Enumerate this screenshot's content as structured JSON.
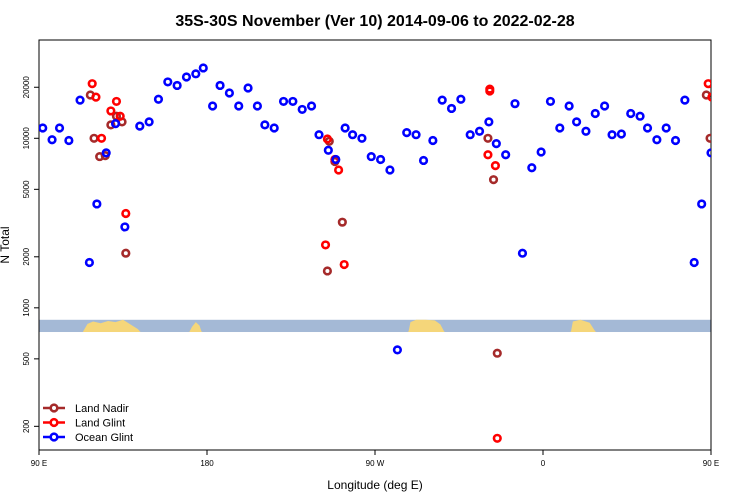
{
  "chart_data": {
    "type": "scatter",
    "title": "35S-30S November (Ver 10)   2014-09-06 to 2022-02-28",
    "xlabel": "Longitude (deg E)",
    "ylabel": "N Total",
    "y_scale": "log",
    "xlim": [
      90,
      450
    ],
    "ylim": [
      145,
      38000
    ],
    "x_ticks": [
      {
        "value": 90,
        "label": "90 E"
      },
      {
        "value": 180,
        "label": "180"
      },
      {
        "value": 270,
        "label": "90 W"
      },
      {
        "value": 360,
        "label": "0"
      },
      {
        "value": 450,
        "label": "90 E"
      },
      {
        "value": 540,
        "label": "180"
      }
    ],
    "y_ticks": [
      {
        "value": 200,
        "label": "200"
      },
      {
        "value": 500,
        "label": "500"
      },
      {
        "value": 1000,
        "label": "1000"
      },
      {
        "value": 2000,
        "label": "2000"
      },
      {
        "value": 5000,
        "label": "5000"
      },
      {
        "value": 10000,
        "label": "10000"
      },
      {
        "value": 20000,
        "label": "20000"
      }
    ],
    "legend": {
      "position": "bottom-left"
    },
    "map_strip": {
      "y_top": 850,
      "y_bottom": 720,
      "ocean_color": "#a4b9d6",
      "land_color": "#f5d67a"
    },
    "series": [
      {
        "name": "Land Nadir",
        "color": "#a52a2a",
        "points": [
          [
            117.5,
            18000
          ],
          [
            119.5,
            10000
          ],
          [
            122.5,
            7800
          ],
          [
            125.5,
            7900
          ],
          [
            128.5,
            12000
          ],
          [
            131.5,
            13500
          ],
          [
            134.5,
            12500
          ],
          [
            136.5,
            2100
          ],
          [
            244.5,
            1650
          ],
          [
            245.5,
            9600
          ],
          [
            248.5,
            7300
          ],
          [
            252.5,
            3200
          ],
          [
            330.5,
            10000
          ],
          [
            333.5,
            5700
          ],
          [
            335.5,
            540
          ],
          [
            447.5,
            18000
          ],
          [
            449.5,
            10000
          ],
          [
            452.5,
            7800
          ],
          [
            455.5,
            7900
          ],
          [
            458.5,
            12000
          ],
          [
            461.5,
            13500
          ],
          [
            464.5,
            12500
          ],
          [
            466.5,
            2100
          ]
        ]
      },
      {
        "name": "Land Glint",
        "color": "#ff0000",
        "points": [
          [
            118.5,
            21000
          ],
          [
            120.5,
            17500
          ],
          [
            123.5,
            10000
          ],
          [
            128.5,
            14500
          ],
          [
            131.5,
            16500
          ],
          [
            133.5,
            13500
          ],
          [
            136.5,
            3600
          ],
          [
            243.5,
            2350
          ],
          [
            244.5,
            9900
          ],
          [
            248.5,
            7500
          ],
          [
            250.5,
            6500
          ],
          [
            253.5,
            1800
          ],
          [
            330.5,
            8000
          ],
          [
            331.5,
            19000
          ],
          [
            331.5,
            19500
          ],
          [
            334.5,
            6900
          ],
          [
            335.5,
            170
          ],
          [
            448.5,
            21000
          ],
          [
            450.5,
            17500
          ],
          [
            453.5,
            10000
          ],
          [
            458.5,
            14500
          ],
          [
            461.5,
            16500
          ],
          [
            463.5,
            13500
          ],
          [
            466.5,
            3600
          ]
        ]
      },
      {
        "name": "Ocean Glint",
        "color": "#0000ff",
        "points": [
          [
            92,
            11500
          ],
          [
            97,
            9800
          ],
          [
            101,
            11500
          ],
          [
            106,
            9700
          ],
          [
            112,
            16800
          ],
          [
            117,
            1850
          ],
          [
            121,
            4100
          ],
          [
            126,
            8200
          ],
          [
            131,
            12200
          ],
          [
            136,
            3000
          ],
          [
            144,
            11800
          ],
          [
            149,
            12500
          ],
          [
            154,
            17000
          ],
          [
            159,
            21500
          ],
          [
            164,
            20500
          ],
          [
            169,
            23000
          ],
          [
            174,
            24000
          ],
          [
            178,
            26000
          ],
          [
            183,
            15500
          ],
          [
            187,
            20500
          ],
          [
            192,
            18500
          ],
          [
            197,
            15500
          ],
          [
            202,
            19800
          ],
          [
            207,
            15500
          ],
          [
            211,
            12000
          ],
          [
            216,
            11500
          ],
          [
            221,
            16500
          ],
          [
            226,
            16500
          ],
          [
            231,
            14800
          ],
          [
            236,
            15500
          ],
          [
            240,
            10500
          ],
          [
            245,
            8500
          ],
          [
            249,
            7500
          ],
          [
            254,
            11500
          ],
          [
            258,
            10500
          ],
          [
            263,
            10000
          ],
          [
            268,
            7800
          ],
          [
            273,
            7500
          ],
          [
            278,
            6500
          ],
          [
            282,
            565
          ],
          [
            287,
            10800
          ],
          [
            292,
            10500
          ],
          [
            296,
            7400
          ],
          [
            301,
            9700
          ],
          [
            306,
            16800
          ],
          [
            311,
            15000
          ],
          [
            316,
            17000
          ],
          [
            321,
            10500
          ],
          [
            326,
            11000
          ],
          [
            331,
            12500
          ],
          [
            335,
            9300
          ],
          [
            340,
            8000
          ],
          [
            345,
            16000
          ],
          [
            349,
            2100
          ],
          [
            354,
            6700
          ],
          [
            359,
            8300
          ],
          [
            364,
            16500
          ],
          [
            369,
            11500
          ],
          [
            374,
            15500
          ],
          [
            378,
            12500
          ],
          [
            383,
            11000
          ],
          [
            388,
            14000
          ],
          [
            393,
            15500
          ],
          [
            397,
            10500
          ],
          [
            402,
            10600
          ],
          [
            407,
            14000
          ],
          [
            412,
            13500
          ],
          [
            416,
            11500
          ],
          [
            421,
            9800
          ],
          [
            426,
            11500
          ],
          [
            431,
            9700
          ],
          [
            436,
            16800
          ],
          [
            441,
            1850
          ],
          [
            445,
            4100
          ],
          [
            450,
            8200
          ],
          [
            455,
            12200
          ],
          [
            460,
            3000
          ],
          [
            464,
            11800
          ],
          [
            469,
            12500
          ],
          [
            474,
            17000
          ],
          [
            479,
            21500
          ],
          [
            484,
            20500
          ],
          [
            489,
            23000
          ]
        ]
      }
    ]
  }
}
